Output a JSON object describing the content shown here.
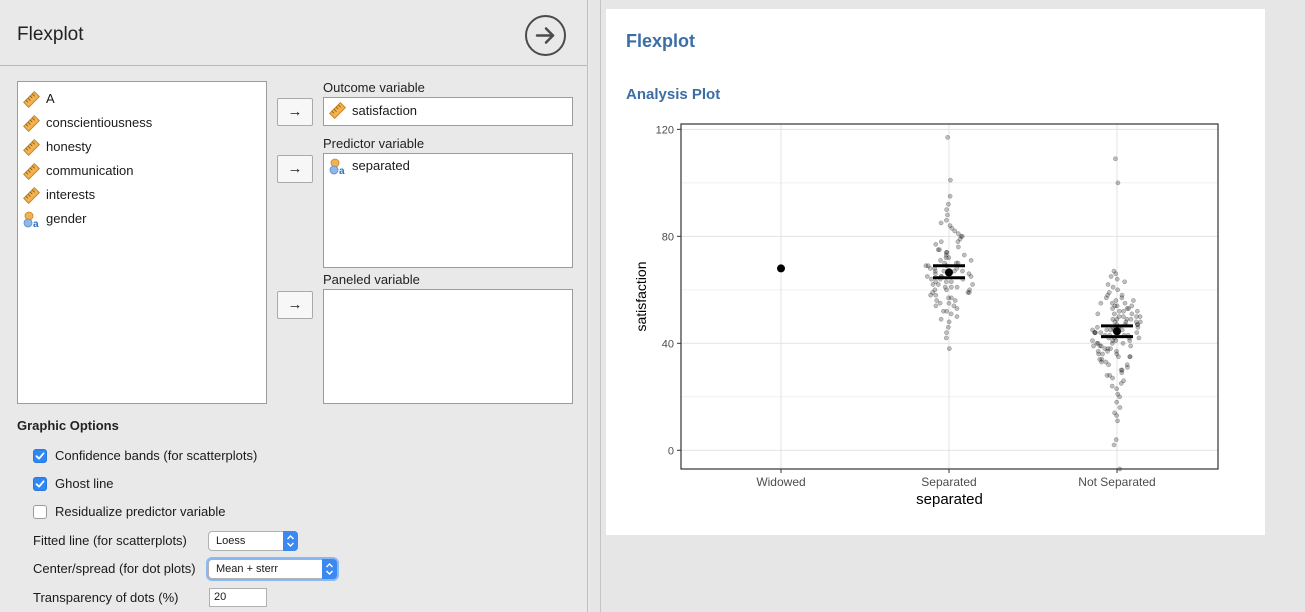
{
  "panel": {
    "title": "Flexplot",
    "run_icon": "arrow-right-circle-icon"
  },
  "variables": [
    {
      "name": "A",
      "type": "scale",
      "icon": "ruler-icon"
    },
    {
      "name": "conscientiousness",
      "type": "scale",
      "icon": "ruler-icon"
    },
    {
      "name": "honesty",
      "type": "scale",
      "icon": "ruler-icon"
    },
    {
      "name": "communication",
      "type": "scale",
      "icon": "ruler-icon"
    },
    {
      "name": "interests",
      "type": "scale",
      "icon": "ruler-icon"
    },
    {
      "name": "gender",
      "type": "nominal",
      "icon": "nominal-text-icon"
    }
  ],
  "fields": {
    "outcome": {
      "label": "Outcome variable",
      "value": "satisfaction",
      "icon": "ruler-icon"
    },
    "predictor": {
      "label": "Predictor variable",
      "value": "separated",
      "icon": "nominal-text-icon"
    },
    "paneled": {
      "label": "Paneled variable"
    }
  },
  "arrow_glyph": "→",
  "graphic_options": {
    "title": "Graphic Options",
    "confidence_bands": {
      "label": "Confidence bands (for scatterplots)",
      "checked": true
    },
    "ghost_line": {
      "label": "Ghost line",
      "checked": true
    },
    "residualize": {
      "label": "Residualize predictor variable",
      "checked": false
    },
    "fitted_line": {
      "label": "Fitted line (for scatterplots)",
      "value": "Loess"
    },
    "center_spread": {
      "label": "Center/spread (for dot plots)",
      "value": "Mean + sterr"
    },
    "transparency": {
      "label": "Transparency of dots (%)",
      "value": "20"
    }
  },
  "results": {
    "title": "Flexplot",
    "section_title": "Analysis Plot"
  },
  "chart_data": {
    "type": "scatter",
    "xlabel": "separated",
    "ylabel": "satisfaction",
    "categories": [
      "Widowed",
      "Separated",
      "Not Separated"
    ],
    "ylim": [
      -7,
      122
    ],
    "yticks": [
      0,
      40,
      80,
      120
    ],
    "grid": true,
    "summary": [
      {
        "category": "Widowed",
        "mean": 68,
        "se_low": null,
        "se_high": null
      },
      {
        "category": "Separated",
        "mean": 66.5,
        "se_low": 64.5,
        "se_high": 69
      },
      {
        "category": "Not Separated",
        "mean": 44.5,
        "se_low": 42.5,
        "se_high": 46.5
      }
    ],
    "points": {
      "Widowed": [
        68
      ],
      "Separated": [
        38,
        42,
        44,
        46,
        48,
        49,
        50,
        51,
        52,
        52,
        53,
        54,
        54,
        55,
        55,
        56,
        56,
        57,
        57,
        58,
        58,
        59,
        59,
        59,
        60,
        60,
        60,
        61,
        61,
        61,
        62,
        62,
        62,
        63,
        63,
        63,
        64,
        64,
        64,
        65,
        65,
        65,
        65,
        66,
        66,
        66,
        67,
        67,
        67,
        67,
        68,
        68,
        68,
        69,
        69,
        69,
        70,
        70,
        70,
        71,
        71,
        72,
        72,
        73,
        73,
        74,
        74,
        75,
        75,
        76,
        77,
        78,
        78,
        79,
        80,
        80,
        81,
        82,
        83,
        84,
        85,
        86,
        88,
        90,
        92,
        95,
        101,
        117
      ],
      "Not Separated": [
        -7,
        2,
        4,
        11,
        13,
        14,
        16,
        18,
        20,
        21,
        23,
        24,
        25,
        26,
        27,
        28,
        28,
        29,
        30,
        30,
        31,
        32,
        32,
        33,
        33,
        34,
        34,
        35,
        35,
        35,
        36,
        36,
        36,
        37,
        37,
        37,
        38,
        38,
        38,
        39,
        39,
        39,
        39,
        40,
        40,
        40,
        40,
        41,
        41,
        41,
        41,
        42,
        42,
        42,
        42,
        43,
        43,
        43,
        43,
        44,
        44,
        44,
        44,
        44,
        45,
        45,
        45,
        45,
        45,
        46,
        46,
        46,
        46,
        46,
        47,
        47,
        47,
        47,
        48,
        48,
        48,
        48,
        49,
        49,
        49,
        49,
        50,
        50,
        50,
        50,
        51,
        51,
        51,
        52,
        52,
        52,
        53,
        53,
        53,
        54,
        54,
        54,
        55,
        55,
        55,
        56,
        56,
        57,
        57,
        58,
        58,
        59,
        60,
        61,
        62,
        63,
        64,
        65,
        66,
        67,
        100,
        109
      ]
    }
  }
}
